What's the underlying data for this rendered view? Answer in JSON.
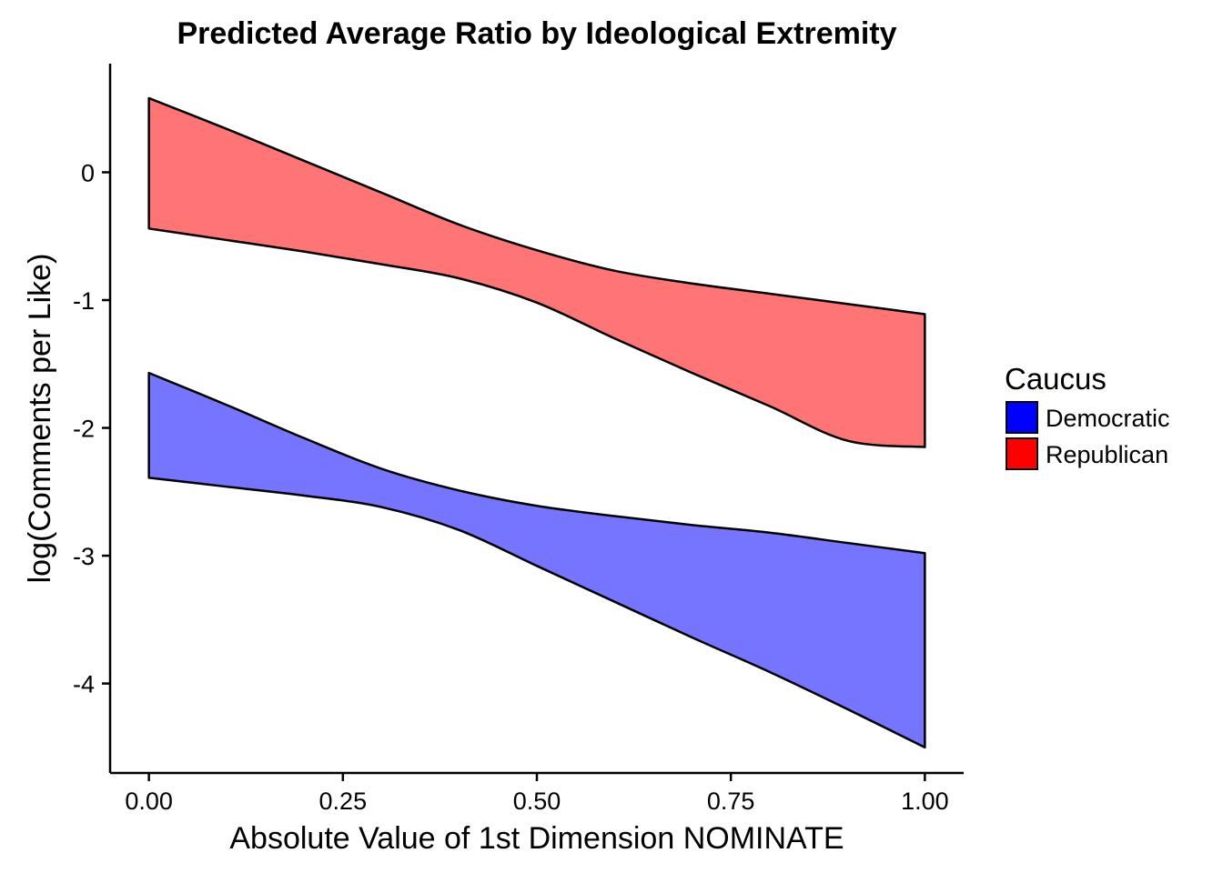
{
  "chart_data": {
    "type": "area",
    "title": "Predicted Average Ratio by Ideological Extremity",
    "xlabel": "Absolute Value of 1st Dimension NOMINATE",
    "ylabel": "log(Comments per Like)",
    "xlim": [
      -0.05,
      1.05
    ],
    "ylim": [
      -4.7,
      0.85
    ],
    "x_ticks": [
      0.0,
      0.25,
      0.5,
      0.75,
      1.0
    ],
    "x_tick_labels": [
      "0.00",
      "0.25",
      "0.50",
      "0.75",
      "1.00"
    ],
    "y_ticks": [
      0,
      -1,
      -2,
      -3,
      -4
    ],
    "y_tick_labels": [
      "0",
      "-1",
      "-2",
      "-3",
      "-4"
    ],
    "grid": false,
    "legend": {
      "title": "Caucus",
      "position": "right"
    },
    "series": [
      {
        "name": "Democratic",
        "color": "#0000FF",
        "fill": "#7575FF",
        "x": [
          0.0,
          0.1,
          0.2,
          0.3,
          0.4,
          0.5,
          0.6,
          0.7,
          0.8,
          0.9,
          1.0
        ],
        "upper": [
          -1.57,
          -1.82,
          -2.08,
          -2.32,
          -2.49,
          -2.61,
          -2.69,
          -2.76,
          -2.82,
          -2.9,
          -2.98
        ],
        "lower": [
          -2.39,
          -2.46,
          -2.53,
          -2.62,
          -2.8,
          -3.08,
          -3.36,
          -3.64,
          -3.91,
          -4.2,
          -4.5
        ]
      },
      {
        "name": "Republican",
        "color": "#FF0000",
        "fill": "#FF7575",
        "x": [
          0.0,
          0.1,
          0.2,
          0.3,
          0.4,
          0.5,
          0.6,
          0.7,
          0.8,
          0.9,
          1.0
        ],
        "upper": [
          0.58,
          0.34,
          0.09,
          -0.16,
          -0.41,
          -0.61,
          -0.77,
          -0.87,
          -0.95,
          -1.03,
          -1.11
        ],
        "lower": [
          -0.44,
          -0.53,
          -0.62,
          -0.72,
          -0.83,
          -1.02,
          -1.3,
          -1.57,
          -1.83,
          -2.1,
          -2.15
        ]
      }
    ]
  }
}
